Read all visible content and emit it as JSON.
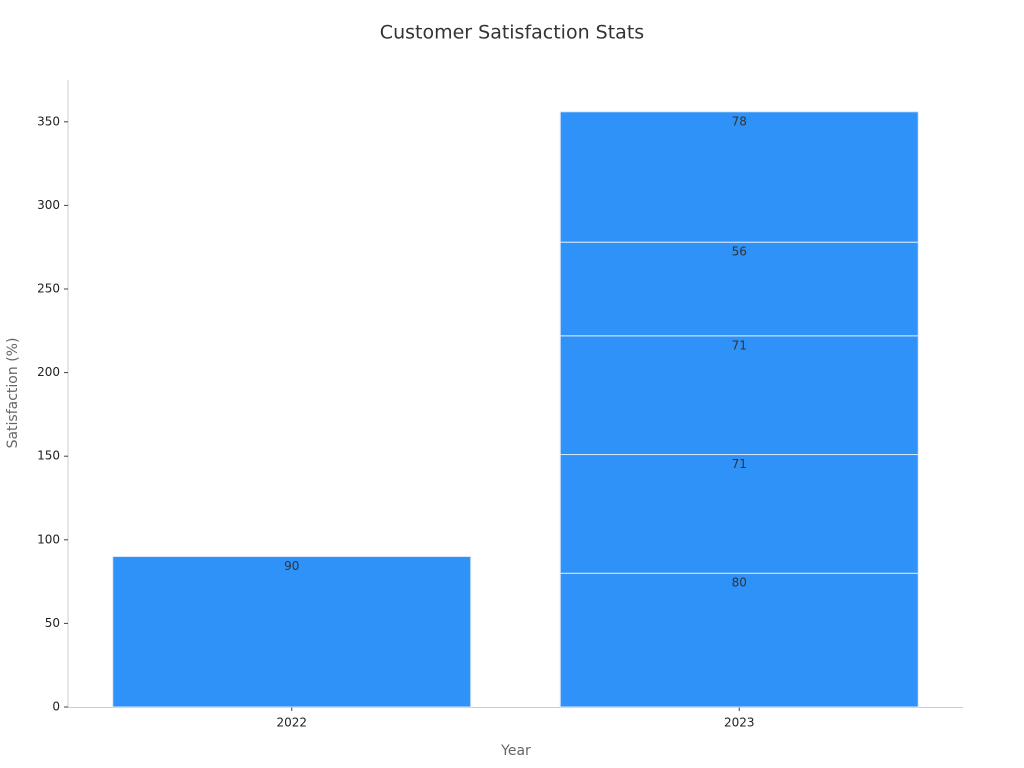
{
  "chart_data": {
    "type": "stacked_bar",
    "title": "Customer Satisfaction Stats",
    "x_label": "Year",
    "y_label": "Satisfaction (%)",
    "categories": [
      "2022",
      "2023"
    ],
    "series": [
      {
        "color": "#2f92f8",
        "values": [
          90,
          80
        ]
      },
      {
        "color": "#2f92f8",
        "values": [
          null,
          71
        ]
      },
      {
        "color": "#2f92f8",
        "values": [
          null,
          71
        ]
      },
      {
        "color": "#2f92f8",
        "values": [
          null,
          56
        ]
      },
      {
        "color": "#2f92f8",
        "values": [
          null,
          78
        ]
      }
    ],
    "ylim": [
      0,
      375
    ],
    "yticks": [
      0,
      50,
      100,
      150,
      200,
      250,
      300,
      350
    ],
    "grid": false
  }
}
